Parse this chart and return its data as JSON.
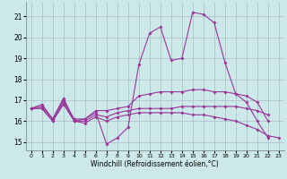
{
  "xlabel": "Windchill (Refroidissement éolien,°C)",
  "xlim": [
    -0.5,
    23.5
  ],
  "ylim": [
    14.6,
    21.7
  ],
  "yticks": [
    15,
    16,
    17,
    18,
    19,
    20,
    21
  ],
  "xticks": [
    0,
    1,
    2,
    3,
    4,
    5,
    6,
    7,
    8,
    9,
    10,
    11,
    12,
    13,
    14,
    15,
    16,
    17,
    18,
    19,
    20,
    21,
    22,
    23
  ],
  "bg_color": "#cce8e8",
  "grid_color": "#aabbcc",
  "line_color": "#993399",
  "lines": [
    {
      "x": [
        0,
        1,
        2,
        3,
        4,
        5,
        6,
        7,
        8,
        9,
        10,
        11,
        12,
        13,
        14,
        15,
        16,
        17,
        18,
        19,
        20,
        21,
        22
      ],
      "y": [
        16.6,
        16.8,
        16.1,
        17.1,
        16.0,
        16.1,
        16.4,
        14.9,
        15.2,
        15.7,
        18.7,
        20.2,
        20.5,
        18.9,
        19.0,
        21.2,
        21.1,
        20.7,
        18.8,
        17.3,
        16.9,
        16.0,
        15.2
      ]
    },
    {
      "x": [
        0,
        1,
        2,
        3,
        4,
        5,
        6,
        7,
        8,
        9,
        10,
        11,
        12,
        13,
        14,
        15,
        16,
        17,
        18,
        19,
        20,
        21,
        22,
        23
      ],
      "y": [
        16.6,
        16.7,
        16.1,
        17.0,
        16.1,
        16.1,
        16.5,
        16.5,
        16.6,
        16.7,
        17.2,
        17.3,
        17.4,
        17.4,
        17.4,
        17.5,
        17.5,
        17.4,
        17.4,
        17.3,
        17.2,
        16.9,
        16.0,
        null
      ]
    },
    {
      "x": [
        0,
        1,
        2,
        3,
        4,
        5,
        6,
        7,
        8,
        9,
        10,
        11,
        12,
        13,
        14,
        15,
        16,
        17,
        18,
        19,
        20,
        21,
        22,
        23
      ],
      "y": [
        16.6,
        16.6,
        16.0,
        16.9,
        16.0,
        16.0,
        16.3,
        16.2,
        16.4,
        16.5,
        16.6,
        16.6,
        16.6,
        16.6,
        16.7,
        16.7,
        16.7,
        16.7,
        16.7,
        16.7,
        16.6,
        16.5,
        16.3,
        null
      ]
    },
    {
      "x": [
        0,
        1,
        2,
        3,
        4,
        5,
        6,
        7,
        8,
        9,
        10,
        11,
        12,
        13,
        14,
        15,
        16,
        17,
        18,
        19,
        20,
        21,
        22,
        23
      ],
      "y": [
        16.6,
        16.6,
        16.0,
        16.8,
        16.0,
        15.9,
        16.2,
        16.0,
        16.2,
        16.3,
        16.4,
        16.4,
        16.4,
        16.4,
        16.4,
        16.3,
        16.3,
        16.2,
        16.1,
        16.0,
        15.8,
        15.6,
        15.3,
        15.2
      ]
    }
  ]
}
